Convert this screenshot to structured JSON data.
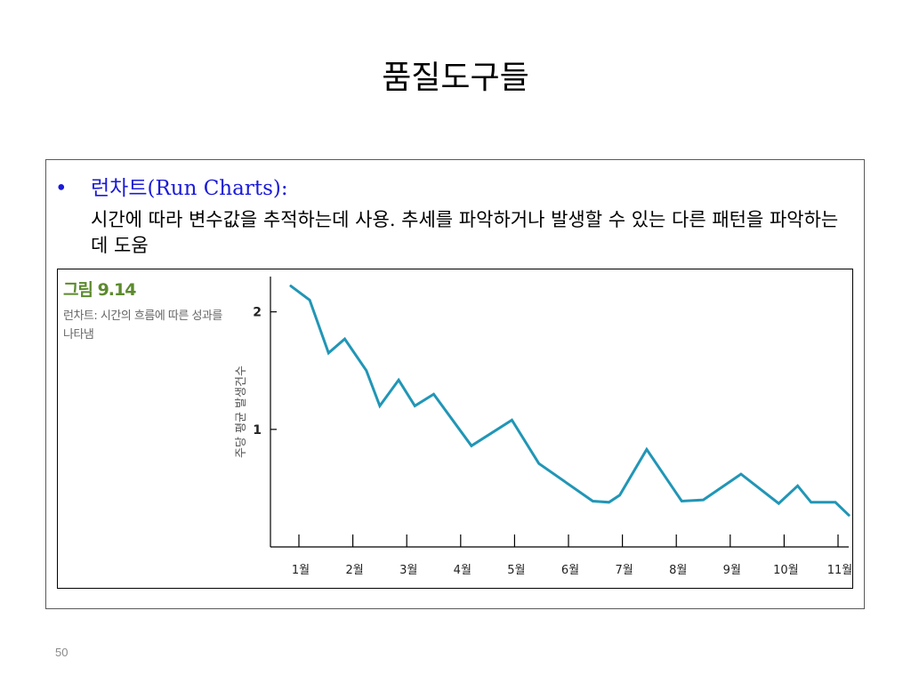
{
  "slide": {
    "title": "품질도구들",
    "page_number": "50"
  },
  "bullet": {
    "symbol": "•",
    "heading": "런차트(Run Charts):",
    "description": "시간에 따라 변수값을 추적하는데 사용. 추세를 파악하거나 발생할 수 있는 다른 패턴을 파악하는 데 도움",
    "color": "#1a1ad9"
  },
  "figure": {
    "label": "그림 9.14",
    "caption": "런차트: 시간의 흐름에 따른 성과를 나타냄",
    "label_color": "#5c8a2e"
  },
  "chart_data": {
    "type": "line",
    "title": "",
    "xlabel": "",
    "ylabel": "주당 평균 발생건수",
    "categories": [
      "1월",
      "2월",
      "3월",
      "4월",
      "5월",
      "6월",
      "7월",
      "8월",
      "9월",
      "10월",
      "11월"
    ],
    "yticks": [
      "1",
      "2"
    ],
    "ylim": [
      0,
      2.3
    ],
    "xlim": [
      0.8,
      11.3
    ],
    "line_color": "#2196b6",
    "grid": false,
    "series": [
      {
        "name": "",
        "x": [
          0.85,
          1.2,
          1.55,
          1.85,
          2.25,
          2.5,
          2.85,
          3.15,
          3.5,
          4.2,
          4.95,
          5.45,
          6.45,
          6.75,
          6.95,
          7.45,
          8.1,
          8.5,
          9.2,
          9.9,
          10.25,
          10.5,
          10.95,
          11.2
        ],
        "y": [
          2.22,
          2.1,
          1.65,
          1.77,
          1.5,
          1.2,
          1.42,
          1.2,
          1.3,
          0.86,
          1.08,
          0.71,
          0.39,
          0.38,
          0.44,
          0.83,
          0.39,
          0.4,
          0.62,
          0.37,
          0.52,
          0.38,
          0.38,
          0.27
        ]
      }
    ]
  }
}
